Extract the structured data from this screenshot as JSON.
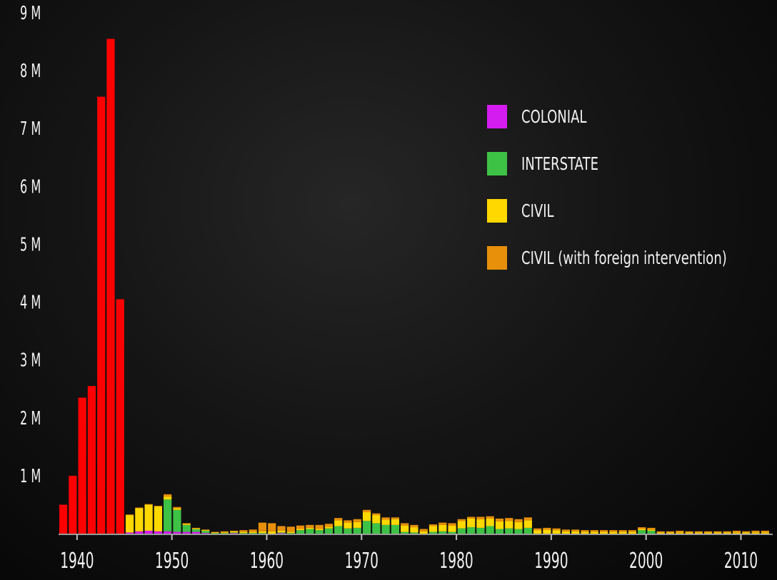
{
  "chart_data": {
    "type": "bar",
    "stacked": true,
    "ylim": [
      0,
      9000000
    ],
    "y_ticks": [
      {
        "value": 1000000,
        "label": "1 M"
      },
      {
        "value": 2000000,
        "label": "2 M"
      },
      {
        "value": 3000000,
        "label": "3 M"
      },
      {
        "value": 4000000,
        "label": "4 M"
      },
      {
        "value": 5000000,
        "label": "5 M"
      },
      {
        "value": 6000000,
        "label": "6 M"
      },
      {
        "value": 7000000,
        "label": "7 M"
      },
      {
        "value": 8000000,
        "label": "8 M"
      },
      {
        "value": 9000000,
        "label": "9 M"
      }
    ],
    "x_ticks": [
      1940,
      1950,
      1960,
      1970,
      1980,
      1990,
      2000,
      2010
    ],
    "grid": false,
    "legend_position": "top-right",
    "wwii": {
      "color": "#ff0000",
      "years": [
        1939,
        1940,
        1941,
        1942,
        1943,
        1944,
        1945
      ],
      "values": [
        500000,
        1000000,
        2350000,
        2550000,
        7550000,
        8550000,
        4050000
      ]
    },
    "categories": [
      1946,
      1947,
      1948,
      1949,
      1950,
      1951,
      1952,
      1953,
      1954,
      1955,
      1956,
      1957,
      1958,
      1959,
      1960,
      1961,
      1962,
      1963,
      1964,
      1965,
      1966,
      1967,
      1968,
      1969,
      1970,
      1971,
      1972,
      1973,
      1974,
      1975,
      1976,
      1977,
      1978,
      1979,
      1980,
      1981,
      1982,
      1983,
      1984,
      1985,
      1986,
      1987,
      1988,
      1989,
      1990,
      1991,
      1992,
      1993,
      1994,
      1995,
      1996,
      1997,
      1998,
      1999,
      2000,
      2001,
      2002,
      2003,
      2004,
      2005,
      2006,
      2007,
      2008,
      2009,
      2010,
      2011,
      2012,
      2013
    ],
    "series": [
      {
        "name": "COLONIAL",
        "color": "#d41cf0",
        "values": [
          20000,
          40000,
          50000,
          40000,
          40000,
          30000,
          30000,
          30000,
          10000,
          0,
          0,
          10000,
          0,
          0,
          0,
          0,
          10000,
          0,
          0,
          0,
          0,
          0,
          0,
          0,
          0,
          0,
          0,
          0,
          0,
          0,
          0,
          0,
          0,
          0,
          0,
          0,
          0,
          0,
          0,
          0,
          0,
          0,
          0,
          0,
          0,
          0,
          0,
          0,
          0,
          0,
          0,
          0,
          0,
          0,
          0,
          0,
          0,
          0,
          0,
          0,
          0,
          0,
          0,
          0,
          0,
          0,
          0,
          0
        ]
      },
      {
        "name": "INTERSTATE",
        "color": "#3ec246",
        "values": [
          0,
          0,
          0,
          0,
          550000,
          380000,
          120000,
          50000,
          40000,
          10000,
          10000,
          10000,
          10000,
          10000,
          10000,
          0,
          10000,
          10000,
          60000,
          80000,
          60000,
          90000,
          130000,
          90000,
          100000,
          220000,
          180000,
          150000,
          150000,
          30000,
          20000,
          0,
          30000,
          40000,
          30000,
          90000,
          110000,
          100000,
          130000,
          80000,
          90000,
          80000,
          100000,
          0,
          0,
          0,
          0,
          0,
          0,
          0,
          0,
          0,
          0,
          0,
          60000,
          50000,
          0,
          0,
          0,
          0,
          0,
          0,
          0,
          0,
          0,
          0,
          0,
          0
        ]
      },
      {
        "name": "CIVIL",
        "color": "#ffd800",
        "values": [
          300000,
          400000,
          450000,
          430000,
          50000,
          30000,
          20000,
          10000,
          10000,
          10000,
          10000,
          20000,
          20000,
          20000,
          30000,
          40000,
          30000,
          20000,
          20000,
          20000,
          20000,
          30000,
          100000,
          100000,
          100000,
          150000,
          140000,
          90000,
          100000,
          110000,
          90000,
          40000,
          100000,
          110000,
          110000,
          130000,
          150000,
          150000,
          130000,
          130000,
          130000,
          120000,
          130000,
          60000,
          70000,
          60000,
          40000,
          40000,
          30000,
          30000,
          30000,
          30000,
          30000,
          30000,
          20000,
          20000,
          20000,
          20000,
          20000,
          20000,
          20000,
          20000,
          20000,
          20000,
          20000,
          20000,
          20000,
          20000
        ]
      },
      {
        "name": "CIVIL (with foreign intervention)",
        "color": "#e8900a",
        "values": [
          10000,
          10000,
          10000,
          10000,
          40000,
          20000,
          10000,
          10000,
          10000,
          10000,
          20000,
          10000,
          30000,
          40000,
          150000,
          140000,
          80000,
          90000,
          60000,
          50000,
          70000,
          50000,
          40000,
          40000,
          50000,
          40000,
          30000,
          40000,
          30000,
          40000,
          40000,
          40000,
          30000,
          40000,
          40000,
          30000,
          30000,
          40000,
          40000,
          50000,
          50000,
          50000,
          50000,
          30000,
          30000,
          30000,
          30000,
          30000,
          30000,
          30000,
          30000,
          30000,
          30000,
          30000,
          30000,
          30000,
          20000,
          20000,
          30000,
          20000,
          20000,
          20000,
          20000,
          20000,
          30000,
          20000,
          30000,
          30000
        ]
      }
    ]
  }
}
